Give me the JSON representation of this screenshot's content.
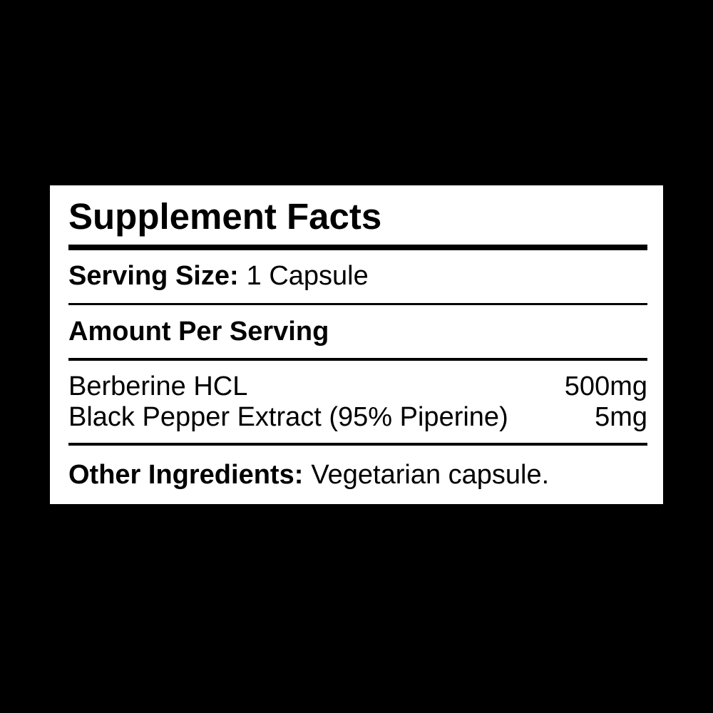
{
  "colors": {
    "background": "#000000",
    "panel": "#ffffff",
    "text": "#000000",
    "rule": "#000000"
  },
  "label": {
    "title": "Supplement Facts",
    "serving": {
      "label": "Serving Size:",
      "value": "1 Capsule"
    },
    "amount_header": "Amount Per Serving",
    "ingredients": [
      {
        "name": "Berberine HCL",
        "amount": "500mg"
      },
      {
        "name": "Black Pepper Extract (95% Piperine)",
        "amount": "5mg"
      }
    ],
    "other": {
      "label": "Other Ingredients:",
      "value": "Vegetarian capsule."
    }
  }
}
